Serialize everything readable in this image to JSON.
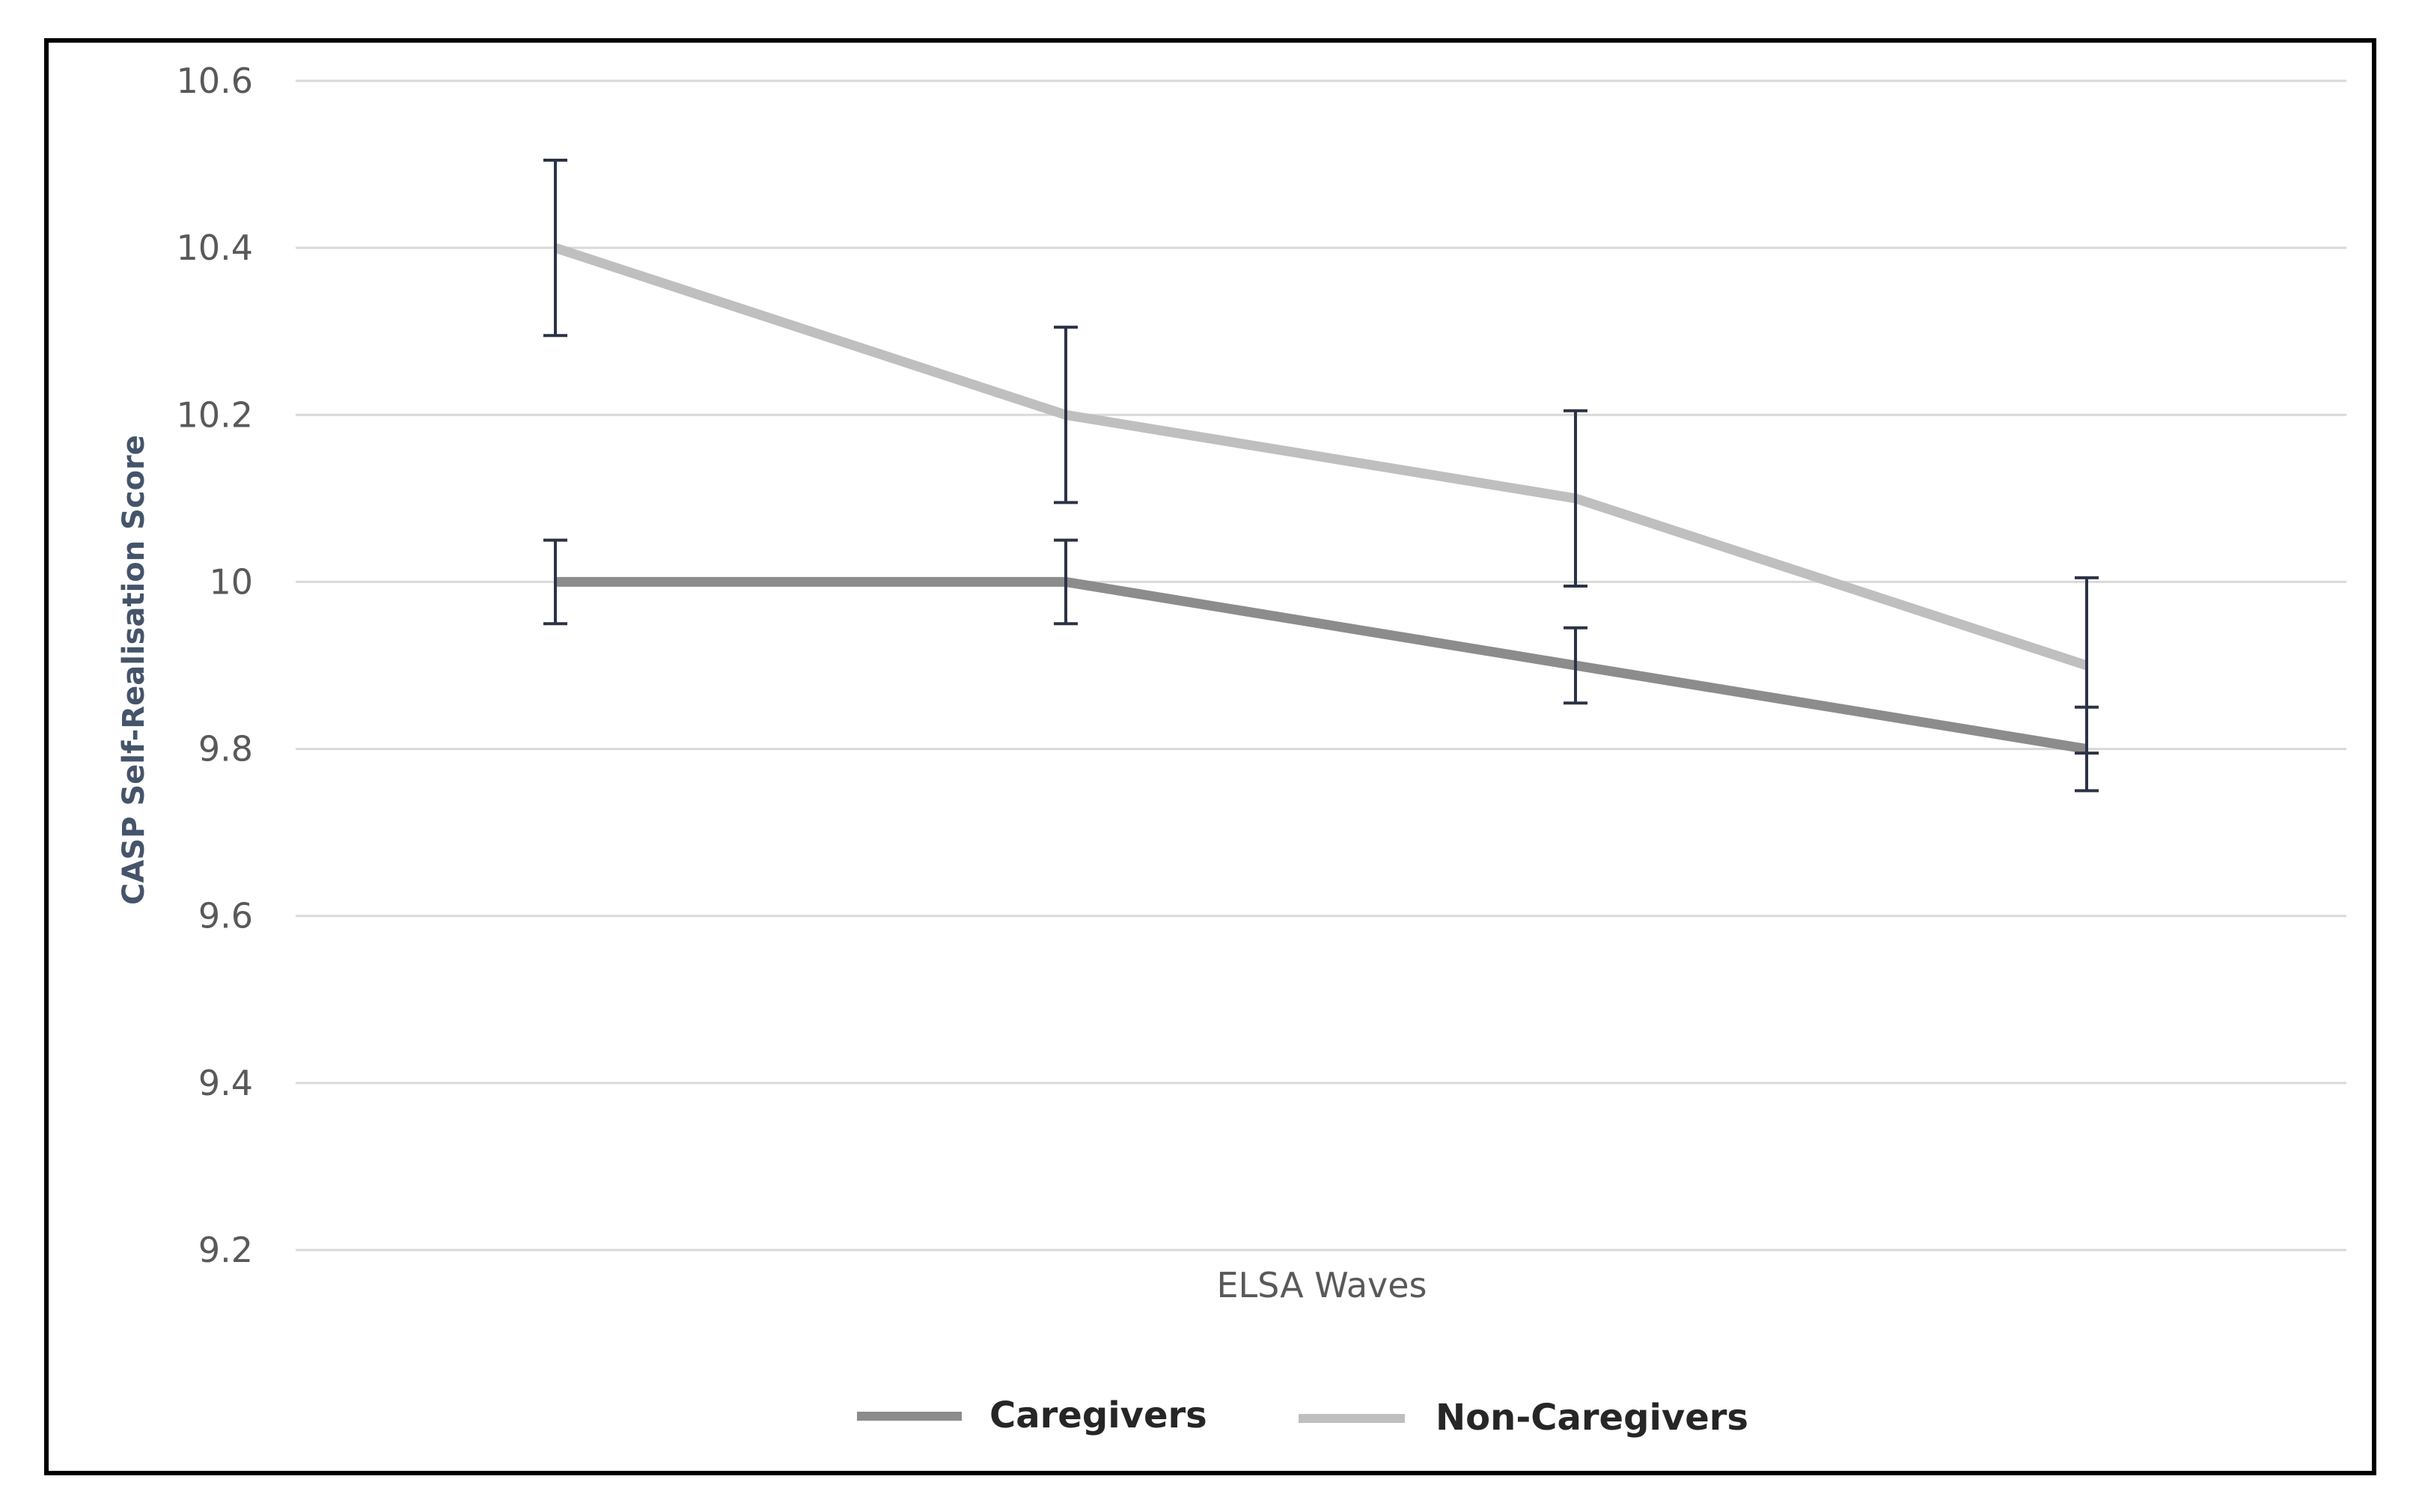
{
  "chart_data": {
    "type": "line",
    "title": "",
    "xlabel": "ELSA Waves",
    "ylabel": "CASP Self-Realisation Score",
    "ylim": [
      9.2,
      10.6
    ],
    "yticks": [
      "10.6",
      "10.4",
      "10.2",
      "10",
      "9.8",
      "9.6",
      "9.4",
      "9.2"
    ],
    "ytick_values": [
      10.6,
      10.4,
      10.2,
      10.0,
      9.8,
      9.6,
      9.4,
      9.2
    ],
    "x": [
      1,
      2,
      3,
      4
    ],
    "grid": true,
    "legend_position": "bottom",
    "series": [
      {
        "name": "Caregivers",
        "color": "#8c8c8c",
        "values": [
          10.0,
          10.0,
          9.9,
          9.8
        ],
        "error": [
          0.05,
          0.05,
          0.045,
          0.05
        ]
      },
      {
        "name": "Non-Caregivers",
        "color": "#bfbfbf",
        "values": [
          10.4,
          10.2,
          10.1,
          9.9
        ],
        "error": [
          0.105,
          0.105,
          0.105,
          0.105
        ]
      }
    ],
    "errorbar_color": "#2b3346",
    "gridline_color": "#d9d9d9",
    "border_color": "#000000"
  }
}
